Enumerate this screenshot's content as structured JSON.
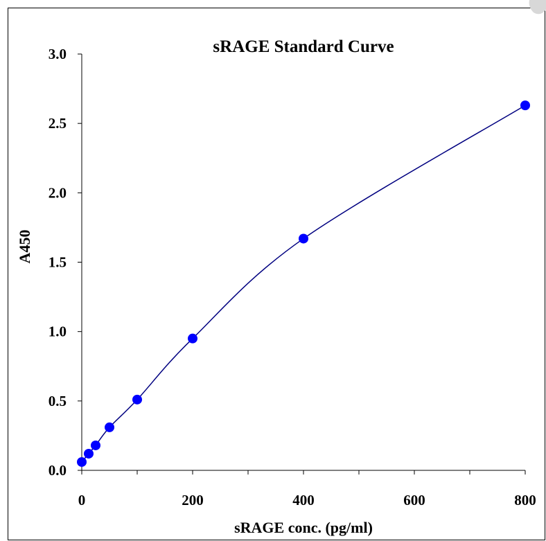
{
  "chart_data": {
    "type": "scatter",
    "title": "sRAGE Standard Curve",
    "xlabel": "sRAGE conc. (pg/ml)",
    "ylabel": "A450",
    "xlim": [
      0,
      800
    ],
    "ylim": [
      0,
      3.0
    ],
    "xticks": [
      "0",
      "200",
      "400",
      "600",
      "800"
    ],
    "yticks": [
      "0.0",
      "0.5",
      "1.0",
      "1.5",
      "2.0",
      "2.5",
      "3.0"
    ],
    "grid": false,
    "legend": "none",
    "marker_color": "#0000ff",
    "line_color": "#000080",
    "series": [
      {
        "x": [
          0,
          12.5,
          25,
          50,
          100,
          200,
          400,
          800
        ],
        "y": [
          0.06,
          0.12,
          0.18,
          0.31,
          0.51,
          0.95,
          1.67,
          2.63
        ]
      }
    ]
  }
}
